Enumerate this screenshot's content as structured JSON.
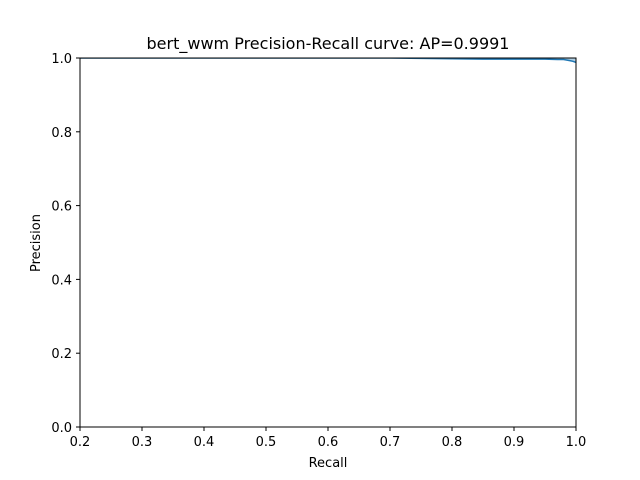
{
  "chart_data": {
    "type": "area",
    "title": "bert_wwm Precision-Recall curve: AP=0.9991",
    "xlabel": "Recall",
    "ylabel": "Precision",
    "xlim": [
      0.2,
      1.0
    ],
    "ylim": [
      0.0,
      1.0
    ],
    "xticks": [
      "0.2",
      "0.3",
      "0.4",
      "0.5",
      "0.6",
      "0.7",
      "0.8",
      "0.9",
      "1.0"
    ],
    "yticks": [
      "0.0",
      "0.2",
      "0.4",
      "0.6",
      "0.8",
      "1.0"
    ],
    "grid": false,
    "legend": "none",
    "colors": {
      "line": "#1f77b4",
      "fill": "#1f77b4"
    },
    "series": [
      {
        "recall": [
          0.0,
          0.2,
          0.4,
          0.6,
          0.7,
          0.75,
          0.8,
          0.85,
          0.9,
          0.95,
          0.97,
          0.98,
          0.99,
          0.995,
          1.0
        ],
        "precision": [
          1.0,
          1.0,
          1.0,
          1.0,
          1.0,
          0.999,
          0.998,
          0.997,
          0.997,
          0.997,
          0.996,
          0.996,
          0.993,
          0.991,
          0.988
        ]
      }
    ]
  }
}
